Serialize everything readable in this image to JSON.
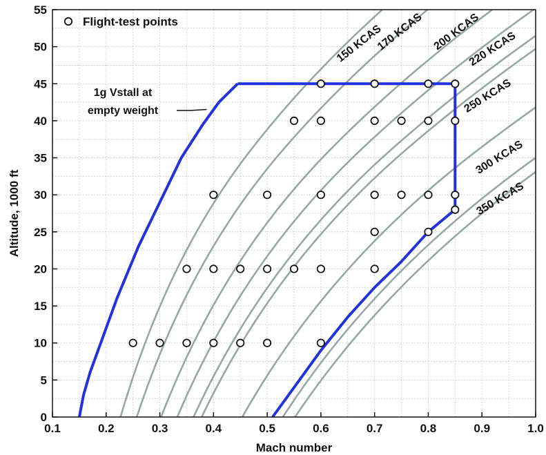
{
  "chart_data": {
    "type": "line",
    "title": "",
    "xlabel": "Mach number",
    "ylabel": "Altitude, 1000 ft",
    "xlim": [
      0.1,
      1.0
    ],
    "ylim": [
      0,
      55
    ],
    "x_ticks": [
      0.1,
      0.2,
      0.3,
      0.4,
      0.5,
      0.6,
      0.7,
      0.8,
      0.9,
      1.0
    ],
    "x_tick_labels": [
      "0.1",
      "0.2",
      "0.3",
      "0.4",
      "0.5",
      "0.6",
      "0.7",
      "0.8",
      "0.9",
      "1.0"
    ],
    "y_ticks": [
      0,
      5,
      10,
      15,
      20,
      25,
      30,
      35,
      40,
      45,
      50,
      55
    ],
    "y_tick_labels": [
      "0",
      "5",
      "10",
      "15",
      "20",
      "25",
      "30",
      "35",
      "40",
      "45",
      "50",
      "55"
    ],
    "grid": true,
    "legend_placement": "top-left",
    "legend": [
      {
        "label": "Flight-test points",
        "marker": "open-circle"
      }
    ],
    "colors": {
      "envelope": "#2233dd",
      "kcas_lines": "#98a7a4",
      "grid": "#b8b8b8",
      "marker_fill": "#ffffff",
      "marker_stroke": "#111111"
    },
    "kcas_lines": [
      {
        "label": "150 KCAS",
        "kcas": 150
      },
      {
        "label": "170 KCAS",
        "kcas": 170
      },
      {
        "label": "200 KCAS",
        "kcas": 200
      },
      {
        "label": "220 KCAS",
        "kcas": 220
      },
      {
        "label": "250 KCAS",
        "kcas": 250
      },
      {
        "label": "300 KCAS",
        "kcas": 300
      },
      {
        "label": "350 KCAS",
        "kcas": 350
      }
    ],
    "kcas_extra_lines": [
      {
        "kcas": 240
      },
      {
        "kcas": 365
      }
    ],
    "stall_boundary": [
      [
        0.15,
        0
      ],
      [
        0.158,
        3
      ],
      [
        0.17,
        6
      ],
      [
        0.19,
        10
      ],
      [
        0.22,
        16
      ],
      [
        0.26,
        23
      ],
      [
        0.3,
        29
      ],
      [
        0.34,
        35
      ],
      [
        0.38,
        39.5
      ],
      [
        0.41,
        42.5
      ],
      [
        0.445,
        45
      ]
    ],
    "envelope_boundary": [
      [
        0.445,
        45
      ],
      [
        0.85,
        45
      ],
      [
        0.85,
        28
      ],
      [
        0.8,
        25
      ],
      [
        0.75,
        21
      ],
      [
        0.7,
        17.5
      ],
      [
        0.65,
        13.5
      ],
      [
        0.6,
        9
      ],
      [
        0.56,
        5
      ],
      [
        0.51,
        0
      ]
    ],
    "annotations": [
      {
        "lines": [
          "1g Vstall at",
          "empty weight"
        ],
        "points_to": [
          0.395,
          42
        ]
      }
    ],
    "flight_test_points": [
      [
        0.25,
        10
      ],
      [
        0.3,
        10
      ],
      [
        0.35,
        10
      ],
      [
        0.4,
        10
      ],
      [
        0.45,
        10
      ],
      [
        0.5,
        10
      ],
      [
        0.6,
        10
      ],
      [
        0.35,
        20
      ],
      [
        0.4,
        20
      ],
      [
        0.45,
        20
      ],
      [
        0.5,
        20
      ],
      [
        0.55,
        20
      ],
      [
        0.6,
        20
      ],
      [
        0.7,
        20
      ],
      [
        0.7,
        25
      ],
      [
        0.8,
        25
      ],
      [
        0.85,
        28
      ],
      [
        0.4,
        30
      ],
      [
        0.5,
        30
      ],
      [
        0.6,
        30
      ],
      [
        0.7,
        30
      ],
      [
        0.75,
        30
      ],
      [
        0.8,
        30
      ],
      [
        0.85,
        30
      ],
      [
        0.55,
        40
      ],
      [
        0.6,
        40
      ],
      [
        0.7,
        40
      ],
      [
        0.75,
        40
      ],
      [
        0.8,
        40
      ],
      [
        0.85,
        40
      ],
      [
        0.6,
        45
      ],
      [
        0.7,
        45
      ],
      [
        0.8,
        45
      ],
      [
        0.85,
        45
      ]
    ]
  }
}
